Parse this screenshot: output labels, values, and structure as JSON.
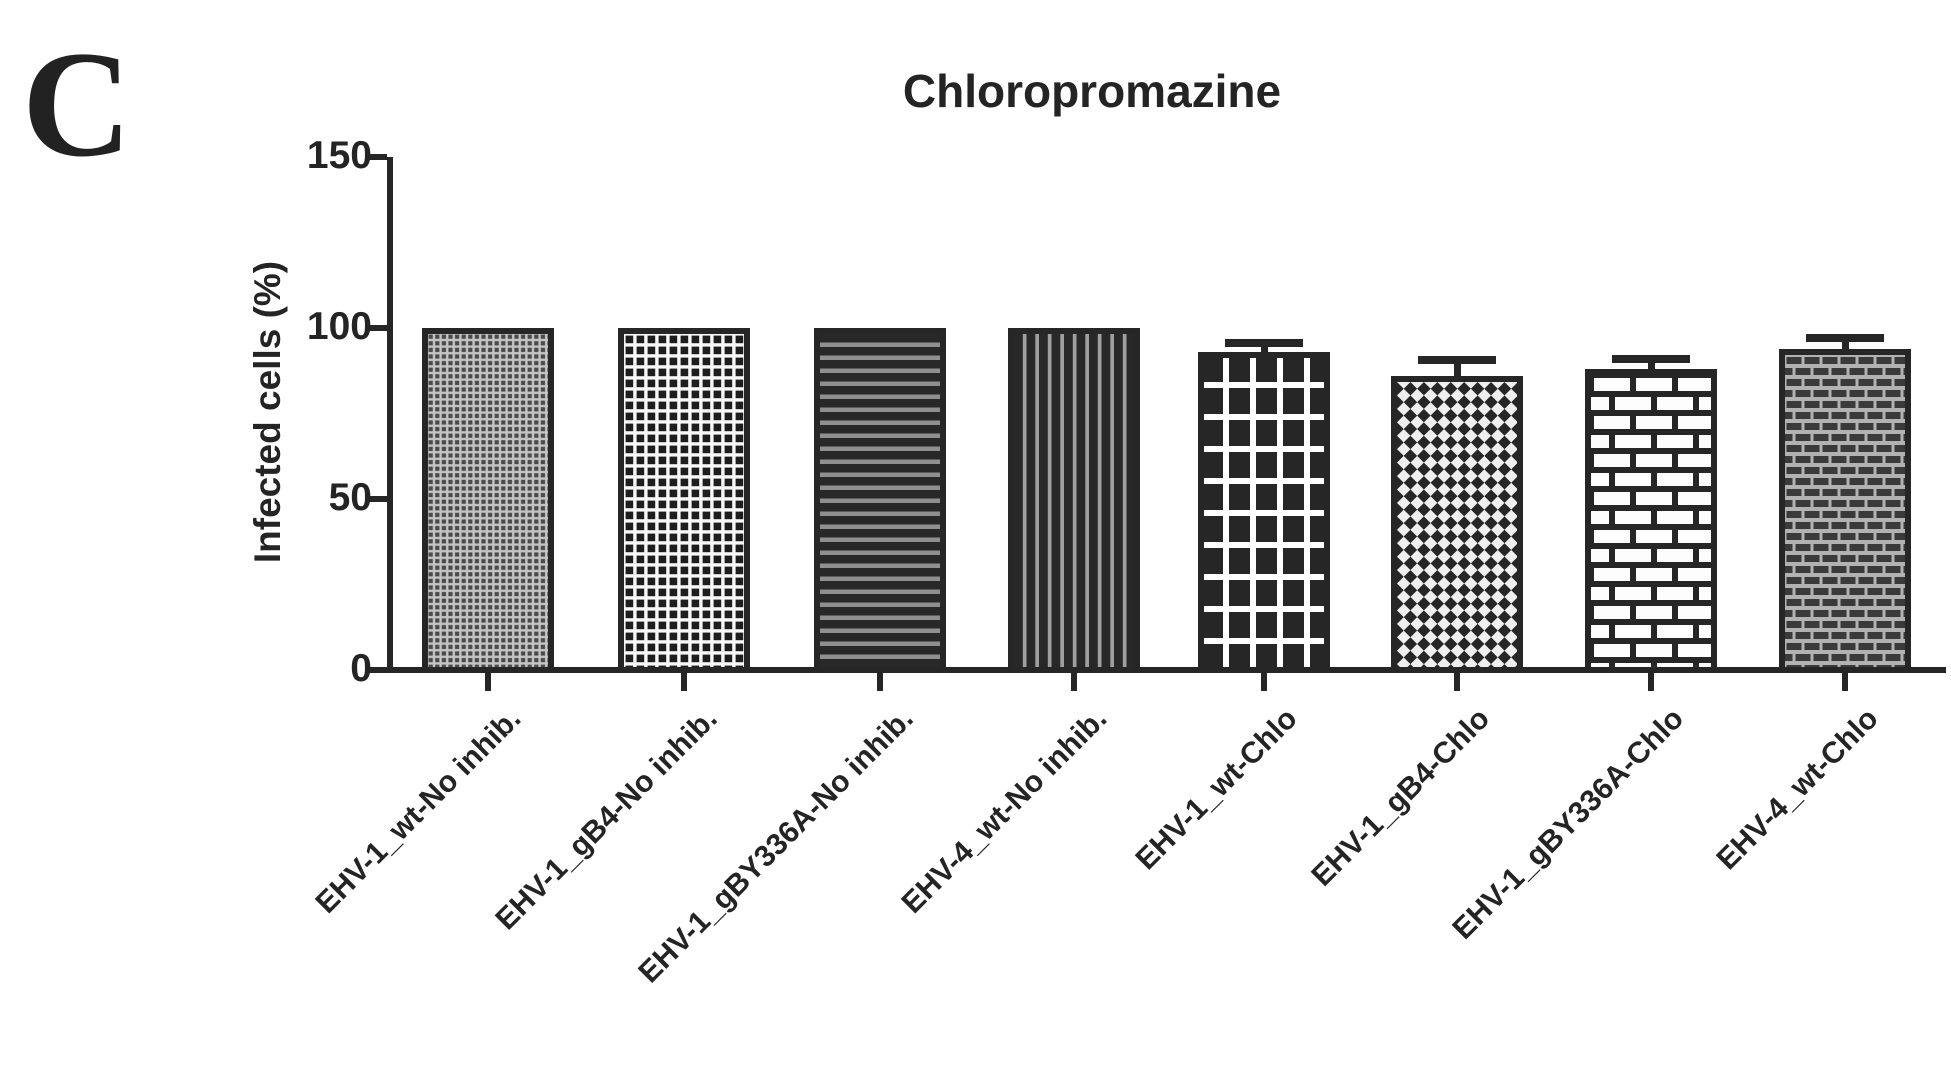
{
  "panel_label": "C",
  "colors": {
    "ink": "#262626",
    "background": "#ffffff"
  },
  "chart_data": {
    "type": "bar",
    "title": "Chloropromazine",
    "xlabel": "",
    "ylabel": "Infected cells (%)",
    "ylim": [
      0,
      150
    ],
    "yticks": [
      0,
      50,
      100,
      150
    ],
    "grid": false,
    "legend_position": "none",
    "categories": [
      "EHV-1_wt-No inhib.",
      "EHV-1_gB4-No inhib.",
      "EHV-1_gBY336A-No inhib.",
      "EHV-4_wt-No inhib.",
      "EHV-1_wt-Chlo",
      "EHV-1_gB4-Chlo",
      "EHV-1_gBY336A-Chlo",
      "EHV-4_wt-Chlo"
    ],
    "values": [
      100,
      100,
      100,
      100,
      93,
      86,
      88,
      94
    ],
    "errors_plus": [
      0,
      0,
      0,
      0,
      2.5,
      4.5,
      3,
      3
    ],
    "bar_fill_patterns": [
      "fine-dot-grid",
      "black-square-grid",
      "horizontal-stripes",
      "vertical-stripes",
      "white-grid-on-dark",
      "diamond-checker",
      "white-bricks",
      "dark-bricks"
    ],
    "bar_outline_color": "#262626"
  }
}
